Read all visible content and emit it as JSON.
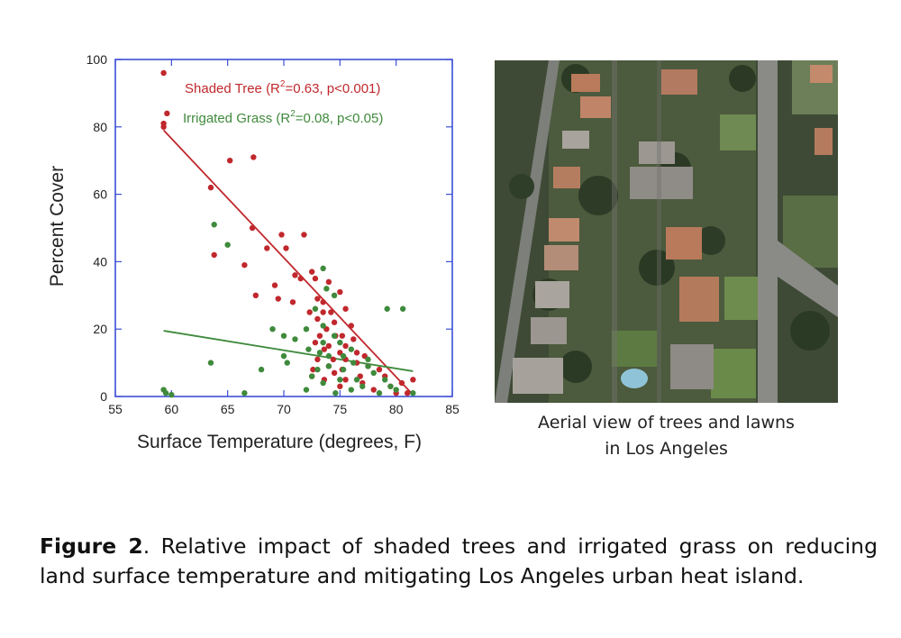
{
  "chart_data": {
    "type": "scatter",
    "title": "",
    "xlabel": "Surface Temperature (degrees, F)",
    "ylabel": "Percent Cover",
    "xlim": [
      55,
      85
    ],
    "ylim": [
      0,
      100
    ],
    "xticks": [
      "55",
      "60",
      "65",
      "70",
      "75",
      "80",
      "85"
    ],
    "yticks": [
      "0",
      "20",
      "40",
      "60",
      "80",
      "100"
    ],
    "grid": false,
    "legend_position": "top-right",
    "series": [
      {
        "name": "Shaded Tree",
        "legend_prefix": "Shaded Tree (R",
        "legend_sup": "2",
        "legend_suffix": "=0.63, p<0.001)",
        "color": "#c0282d",
        "trend": {
          "x": [
            59.3,
            81.5
          ],
          "y": [
            79,
            0.5
          ]
        },
        "points": [
          [
            59.3,
            96
          ],
          [
            59.6,
            84
          ],
          [
            59.3,
            81
          ],
          [
            59.3,
            80
          ],
          [
            65.2,
            70
          ],
          [
            67.3,
            71
          ],
          [
            63.5,
            62
          ],
          [
            67.2,
            50
          ],
          [
            69.8,
            48
          ],
          [
            71.8,
            48
          ],
          [
            68.5,
            44
          ],
          [
            70.2,
            44
          ],
          [
            63.8,
            42
          ],
          [
            66.5,
            39
          ],
          [
            71.0,
            36
          ],
          [
            71.5,
            35
          ],
          [
            72.5,
            37
          ],
          [
            72.8,
            35
          ],
          [
            69.2,
            33
          ],
          [
            74.0,
            34
          ],
          [
            75.0,
            31
          ],
          [
            73.0,
            29
          ],
          [
            67.5,
            30
          ],
          [
            69.5,
            29
          ],
          [
            70.8,
            28
          ],
          [
            73.5,
            28
          ],
          [
            75.5,
            26
          ],
          [
            72.3,
            25
          ],
          [
            73.5,
            25
          ],
          [
            74.2,
            25
          ],
          [
            73.0,
            23
          ],
          [
            74.5,
            22
          ],
          [
            76.0,
            21
          ],
          [
            73.8,
            20
          ],
          [
            74.6,
            18
          ],
          [
            75.2,
            18
          ],
          [
            73.2,
            18
          ],
          [
            76.2,
            17
          ],
          [
            72.8,
            16
          ],
          [
            74.0,
            15
          ],
          [
            75.5,
            15
          ],
          [
            73.6,
            14
          ],
          [
            75.0,
            13
          ],
          [
            76.5,
            13
          ],
          [
            77.2,
            12
          ],
          [
            73.0,
            11
          ],
          [
            74.4,
            11
          ],
          [
            75.5,
            11
          ],
          [
            76.5,
            10
          ],
          [
            74.0,
            9
          ],
          [
            77.5,
            9
          ],
          [
            72.6,
            8
          ],
          [
            75.2,
            8
          ],
          [
            78.5,
            8
          ],
          [
            74.5,
            7
          ],
          [
            76.8,
            6
          ],
          [
            79.0,
            6
          ],
          [
            73.6,
            5
          ],
          [
            75.5,
            5
          ],
          [
            77.0,
            4
          ],
          [
            80.5,
            4
          ],
          [
            79.5,
            3
          ],
          [
            78.0,
            2
          ],
          [
            81.5,
            5
          ],
          [
            80.0,
            1
          ],
          [
            81.0,
            1
          ],
          [
            75.0,
            3
          ],
          [
            72.5,
            6
          ]
        ]
      },
      {
        "name": "Irrigated Grass",
        "legend_prefix": "Irrigated Grass (R",
        "legend_sup": "2",
        "legend_suffix": "=0.08, p<0.05)",
        "color": "#3f8a3c",
        "trend": {
          "x": [
            59.3,
            81.5
          ],
          "y": [
            19.5,
            7.5
          ]
        },
        "points": [
          [
            59.3,
            2
          ],
          [
            59.5,
            1
          ],
          [
            60.0,
            0.5
          ],
          [
            63.8,
            51
          ],
          [
            65.0,
            45
          ],
          [
            63.5,
            10
          ],
          [
            66.5,
            1
          ],
          [
            73.5,
            38
          ],
          [
            73.8,
            32
          ],
          [
            74.5,
            30
          ],
          [
            72.8,
            26
          ],
          [
            73.5,
            21
          ],
          [
            69.0,
            20
          ],
          [
            72.0,
            20
          ],
          [
            70.0,
            18
          ],
          [
            71.0,
            17
          ],
          [
            73.5,
            16
          ],
          [
            74.5,
            18
          ],
          [
            75.0,
            16
          ],
          [
            76.0,
            14
          ],
          [
            72.2,
            14
          ],
          [
            73.2,
            13
          ],
          [
            70.0,
            12
          ],
          [
            74.0,
            12
          ],
          [
            75.3,
            12
          ],
          [
            77.5,
            11
          ],
          [
            76.2,
            10
          ],
          [
            77.5,
            9
          ],
          [
            68.0,
            8
          ],
          [
            73.0,
            8
          ],
          [
            74.0,
            9
          ],
          [
            75.3,
            8
          ],
          [
            78.0,
            7
          ],
          [
            72.5,
            6
          ],
          [
            75.0,
            5
          ],
          [
            76.5,
            5
          ],
          [
            79.0,
            5
          ],
          [
            73.5,
            4
          ],
          [
            77.0,
            3
          ],
          [
            79.5,
            3
          ],
          [
            80.0,
            2
          ],
          [
            74.6,
            1
          ],
          [
            76.0,
            2
          ],
          [
            78.5,
            1
          ],
          [
            81.5,
            1
          ],
          [
            79.2,
            26
          ],
          [
            80.6,
            26
          ],
          [
            70.3,
            10
          ],
          [
            72.0,
            2
          ]
        ]
      }
    ]
  },
  "image_caption_lines": [
    "Aerial view of trees and lawns",
    "in Los Angeles"
  ],
  "figure_caption": {
    "label": "Figure 2",
    "text": ". Relative impact of shaded trees and irrigated grass on reducing land surface temperature and mitigating Los Angeles urban heat island."
  }
}
